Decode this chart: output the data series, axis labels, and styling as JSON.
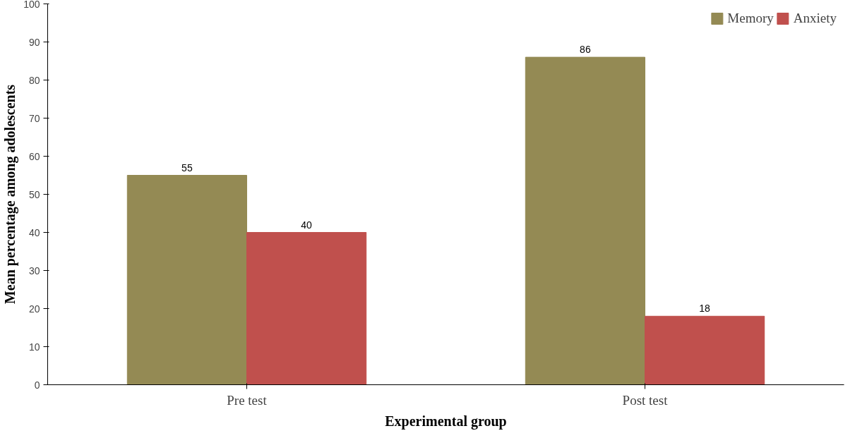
{
  "chart_data": {
    "type": "bar",
    "xlabel": "Experimental group",
    "ylabel": "Mean percentage among adolescents",
    "categories": [
      "Pre test",
      "Post test"
    ],
    "series": [
      {
        "name": "Memory",
        "color": "#948a54",
        "values": [
          55,
          86
        ]
      },
      {
        "name": "Anxiety",
        "color": "#c0504d",
        "values": [
          40,
          18
        ]
      }
    ],
    "ylim": [
      0,
      100
    ],
    "yticks": [
      0,
      10,
      20,
      30,
      40,
      50,
      60,
      70,
      80,
      90,
      100
    ],
    "data_labels": true,
    "legend": "top right",
    "grid": false
  }
}
